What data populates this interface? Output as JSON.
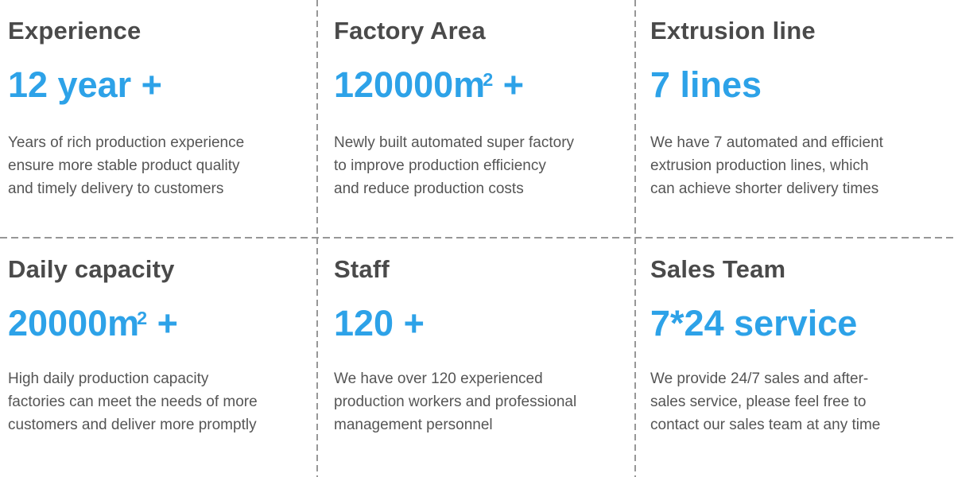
{
  "colors": {
    "accent_blue": "#2da2e8",
    "title_gray": "#4a4a4a",
    "text_gray": "#555555",
    "divider_gray": "#979797",
    "background": "#ffffff"
  },
  "cells": [
    {
      "title": "Experience",
      "value": {
        "main": "12 year +",
        "sup": "",
        "suffix": ""
      },
      "description": [
        "Years of rich production experience",
        "ensure more stable product quality",
        "and timely delivery to customers"
      ]
    },
    {
      "title": "Factory Area",
      "value": {
        "main": "120000m",
        "sup": "2",
        "suffix": " +"
      },
      "description": [
        "Newly built automated super factory",
        "to improve production efficiency",
        "and reduce production costs"
      ]
    },
    {
      "title": "Extrusion line",
      "value": {
        "main": "7 lines",
        "sup": "",
        "suffix": ""
      },
      "description": [
        "We have 7 automated and efficient",
        "extrusion production lines, which",
        "can achieve shorter delivery times"
      ]
    },
    {
      "title": "Daily capacity",
      "value": {
        "main": "20000m",
        "sup": "2",
        "suffix": " +"
      },
      "description": [
        "High daily production capacity",
        "factories can meet the needs of more",
        "customers and deliver more promptly"
      ]
    },
    {
      "title": "Staff",
      "value": {
        "main": "120 +",
        "sup": "",
        "suffix": ""
      },
      "description": [
        "We have over 120 experienced",
        "production workers and professional",
        "management personnel"
      ]
    },
    {
      "title": "Sales Team",
      "value": {
        "main": "7*24 service",
        "sup": "",
        "suffix": ""
      },
      "description": [
        "We provide 24/7 sales and after-",
        "sales service, please feel free to",
        "contact our sales team at any time"
      ]
    }
  ]
}
